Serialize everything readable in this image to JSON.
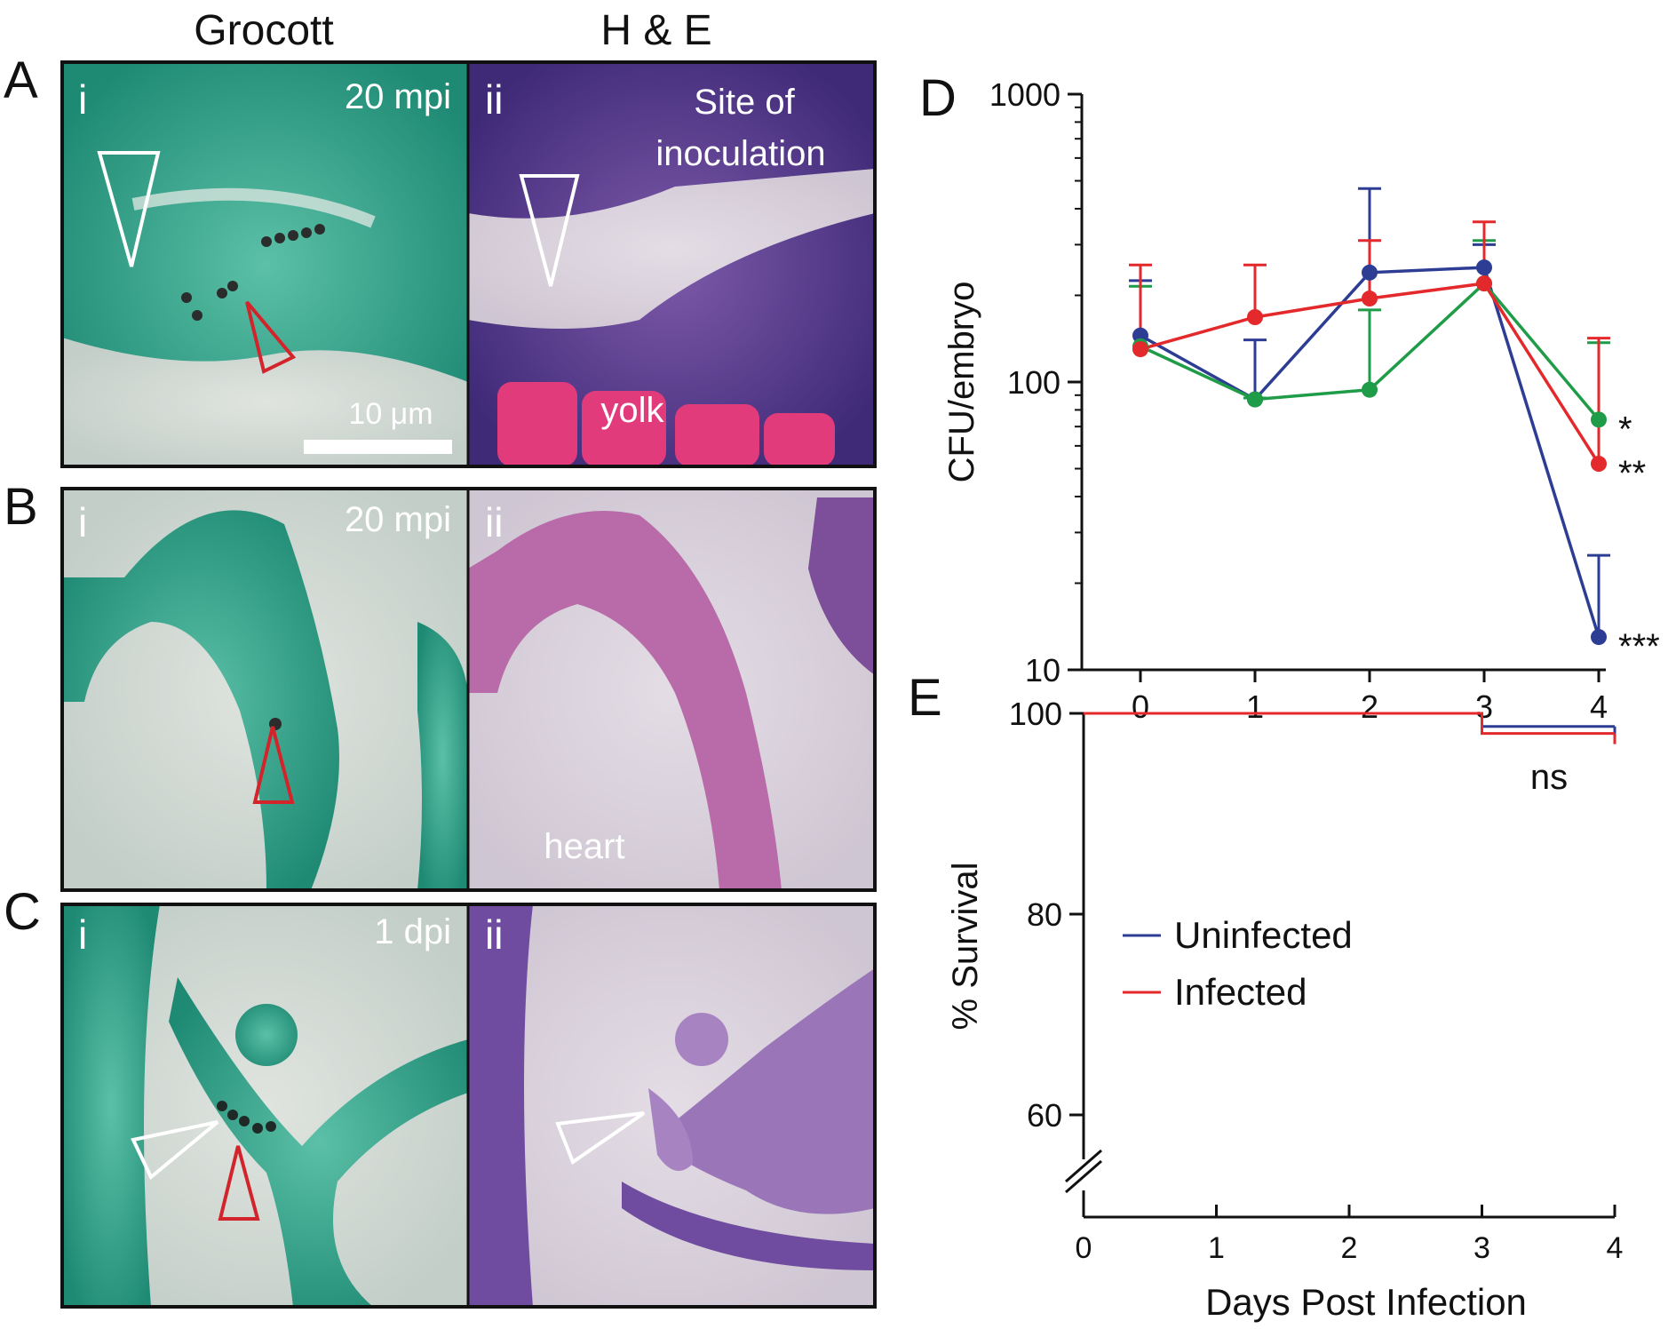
{
  "column_headers": [
    "Grocott",
    "H & E"
  ],
  "rows": [
    {
      "letter": "A",
      "left_label": "i",
      "timepoint": "20 mpi",
      "right_label": "ii",
      "right_annotations": [
        "Site of",
        "inoculation",
        "yolk"
      ],
      "scale_bar": "10 μm"
    },
    {
      "letter": "B",
      "left_label": "i",
      "timepoint": "20 mpi",
      "right_label": "ii",
      "right_annotations": [
        "heart"
      ]
    },
    {
      "letter": "C",
      "left_label": "i",
      "timepoint": "1 dpi",
      "right_label": "ii",
      "right_annotations": []
    }
  ],
  "colors": {
    "grocott_bg": "#3fae97",
    "grocott_light": "#cdd6d0",
    "he_bg": "#6a4a9e",
    "he_light": "#d2cdd6",
    "he_pink": "#e0437e",
    "blue": "#2e3d94",
    "red": "#e3292b",
    "green": "#1f9c48",
    "arrow_white": "#ffffff",
    "arrow_red": "#d4242b"
  },
  "chart_data": [
    {
      "panel": "D",
      "type": "line",
      "ylabel": "CFU/embryo",
      "xlabel": "",
      "yscale": "log",
      "ylim": [
        10,
        1000
      ],
      "yticks": [
        "1000",
        "100",
        "10"
      ],
      "xticks": [
        "0",
        "1",
        "2",
        "3",
        "4"
      ],
      "x": [
        0,
        1,
        2,
        3,
        4
      ],
      "series": [
        {
          "color": "#2e3d94",
          "values": [
            145,
            87,
            240,
            250,
            13
          ],
          "err_up": [
            225,
            140,
            470,
            300,
            25
          ],
          "significance": "***"
        },
        {
          "color": "#1f9c48",
          "values": [
            133,
            87,
            94,
            220,
            74
          ],
          "err_up": [
            215,
            88,
            178,
            310,
            137
          ],
          "significance": "*"
        },
        {
          "color": "#e3292b",
          "values": [
            130,
            168,
            195,
            220,
            52
          ],
          "err_up": [
            255,
            255,
            310,
            360,
            142
          ],
          "significance": "**"
        }
      ]
    },
    {
      "panel": "E",
      "type": "line",
      "ylabel": "% Survival",
      "xlabel": "Days Post Infection",
      "ylim": [
        50,
        100
      ],
      "yticks": [
        "100",
        "80",
        "60"
      ],
      "xticks": [
        "0",
        "1",
        "2",
        "3",
        "4"
      ],
      "annotation": "ns",
      "series": [
        {
          "name": "Uninfected",
          "color": "#2e3d94",
          "steps": [
            [
              0,
              100
            ],
            [
              3,
              100
            ],
            [
              3,
              98.7
            ],
            [
              4,
              98.7
            ]
          ]
        },
        {
          "name": "Infected",
          "color": "#e3292b",
          "steps": [
            [
              0,
              100
            ],
            [
              3,
              100
            ],
            [
              3,
              98.0
            ],
            [
              4,
              98.0
            ]
          ]
        }
      ]
    }
  ]
}
